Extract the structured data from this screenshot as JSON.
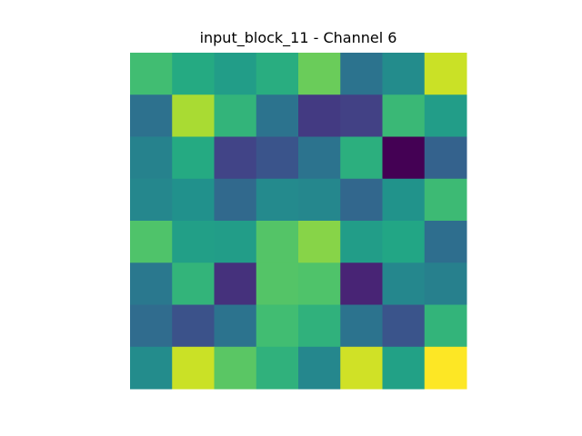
{
  "chart_data": {
    "type": "heatmap",
    "title": "input_block_11 - Channel 6",
    "xlabel": "",
    "ylabel": "",
    "colormap": "viridis",
    "axes_visible": false,
    "grid": false,
    "rows": 8,
    "cols": 8,
    "values": [
      [
        0.69,
        0.61,
        0.55,
        0.62,
        0.77,
        0.38,
        0.48,
        0.92
      ],
      [
        0.37,
        0.87,
        0.65,
        0.38,
        0.17,
        0.19,
        0.67,
        0.55
      ],
      [
        0.44,
        0.61,
        0.2,
        0.26,
        0.38,
        0.63,
        0.0,
        0.31
      ],
      [
        0.46,
        0.5,
        0.34,
        0.47,
        0.46,
        0.33,
        0.51,
        0.68
      ],
      [
        0.72,
        0.56,
        0.55,
        0.73,
        0.82,
        0.55,
        0.59,
        0.36
      ],
      [
        0.4,
        0.65,
        0.14,
        0.73,
        0.72,
        0.1,
        0.46,
        0.43
      ],
      [
        0.35,
        0.25,
        0.38,
        0.69,
        0.64,
        0.38,
        0.26,
        0.65
      ],
      [
        0.48,
        0.92,
        0.74,
        0.64,
        0.46,
        0.93,
        0.57,
        1.0
      ]
    ]
  }
}
